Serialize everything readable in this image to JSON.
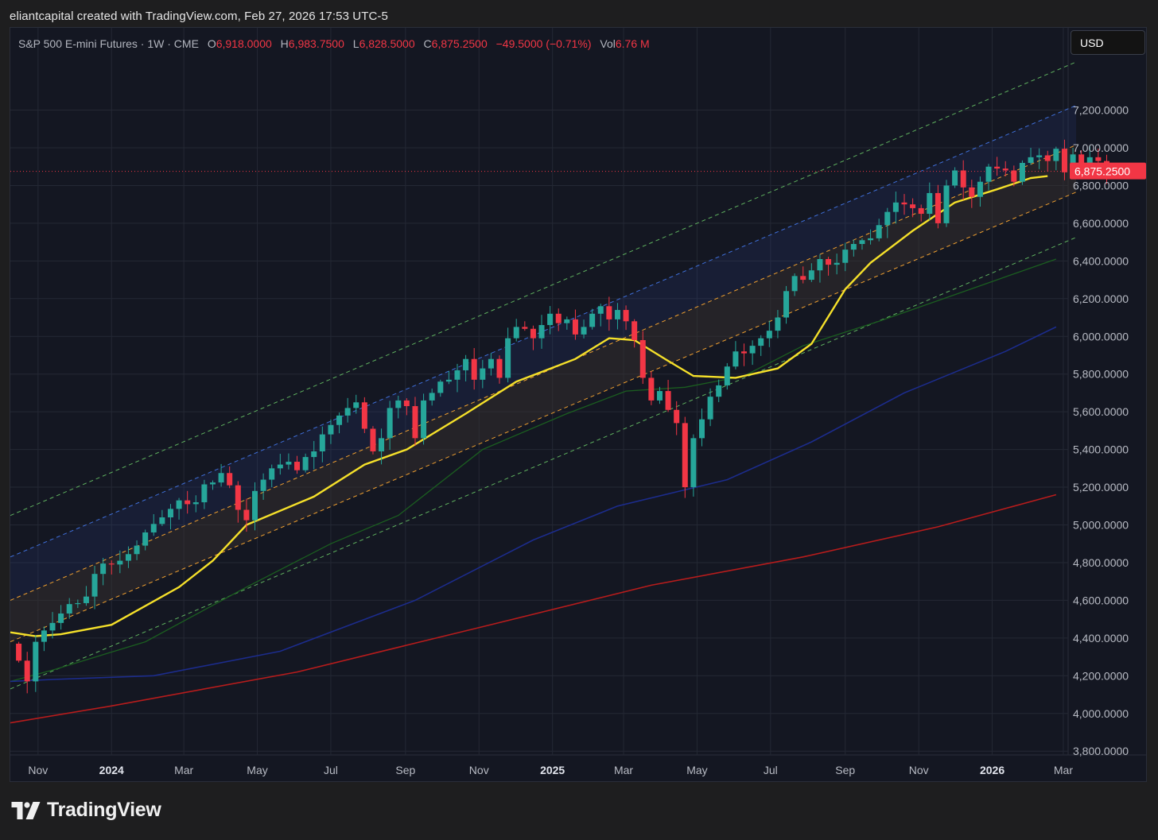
{
  "header": {
    "attribution": "eliantcapital created with TradingView.com, Feb 27, 2026 17:53 UTC-5"
  },
  "legend": {
    "symbol": "S&P 500 E-mini Futures · 1W · CME",
    "open_label": "O",
    "open": "6,918.0000",
    "high_label": "H",
    "high": "6,983.7500",
    "low_label": "L",
    "low": "6,828.5000",
    "close_label": "C",
    "close": "6,875.2500",
    "change": "−49.5000 (−0.71%)",
    "vol_label": "Vol",
    "vol": "6.76 M"
  },
  "currency_button": "USD",
  "footer": {
    "brand": "TradingView"
  },
  "colors": {
    "up": "#26a69a",
    "down": "#f23645",
    "ema20": "#f5e02a",
    "ma50": "#1b5e20",
    "ma100": "#1c2c8c",
    "ma200": "#b71c1c",
    "channel_outer": "#5fb15f",
    "channel_upper": "#3f6fd9",
    "channel_mid": "#f0a030",
    "background": "#141722"
  },
  "chart_data": {
    "type": "candlestick",
    "title": "S&P 500 E-mini Futures · 1W · CME",
    "y_axis": {
      "min": 3700,
      "max": 7250,
      "ticks": [
        "7,200.0000",
        "7,000.0000",
        "6,800.0000",
        "6,600.0000",
        "6,400.0000",
        "6,200.0000",
        "6,000.0000",
        "5,800.0000",
        "5,600.0000",
        "5,400.0000",
        "5,200.0000",
        "5,000.0000",
        "4,800.0000",
        "4,600.0000",
        "4,400.0000",
        "4,200.0000",
        "4,000.0000",
        "3,800.0000"
      ],
      "tick_values": [
        7200,
        7000,
        6800,
        6600,
        6400,
        6200,
        6000,
        5800,
        5600,
        5400,
        5200,
        5000,
        4800,
        4600,
        4400,
        4200,
        4000,
        3800
      ],
      "last_price_label": "6,875.2500",
      "last_price": 6875.25
    },
    "x_axis": {
      "labels": [
        "Nov",
        "2024",
        "Mar",
        "May",
        "Jul",
        "Sep",
        "Nov",
        "2025",
        "Mar",
        "May",
        "Jul",
        "Sep",
        "Nov",
        "2026",
        "Mar"
      ],
      "label_dates": [
        "2023-11-01",
        "2024-01-01",
        "2024-03-01",
        "2024-05-01",
        "2024-07-01",
        "2024-09-01",
        "2024-11-01",
        "2025-01-01",
        "2025-03-01",
        "2025-05-01",
        "2025-07-01",
        "2025-09-01",
        "2025-11-01",
        "2026-01-01",
        "2026-03-01"
      ],
      "bold": [
        "2024",
        "2025",
        "2026"
      ],
      "start_date": "2023-10-09",
      "end_date": "2026-03-05"
    },
    "candles_weekly_close": {
      "first_week": "2023-10-16",
      "first_open": 4370,
      "closes": [
        4280,
        4170,
        4380,
        4440,
        4480,
        4530,
        4580,
        4585,
        4620,
        4740,
        4795,
        4790,
        4810,
        4845,
        4890,
        4960,
        5005,
        5040,
        5085,
        5130,
        5110,
        5120,
        5215,
        5225,
        5275,
        5210,
        5080,
        5025,
        5180,
        5240,
        5300,
        5320,
        5335,
        5290,
        5360,
        5390,
        5480,
        5530,
        5580,
        5620,
        5650,
        5510,
        5390,
        5460,
        5620,
        5660,
        5630,
        5460,
        5660,
        5700,
        5760,
        5770,
        5820,
        5880,
        5770,
        5830,
        5880,
        5780,
        5990,
        6050,
        6040,
        5990,
        6060,
        6120,
        6070,
        6090,
        6010,
        6050,
        6120,
        6160,
        6090,
        6140,
        6080,
        5980,
        5780,
        5660,
        5710,
        5610,
        5540,
        5200,
        5460,
        5560,
        5680,
        5740,
        5840,
        5920,
        5910,
        5950,
        5990,
        6030,
        6100,
        6240,
        6320,
        6300,
        6350,
        6410,
        6380,
        6390,
        6460,
        6490,
        6510,
        6520,
        6590,
        6660,
        6710,
        6700,
        6680,
        6650,
        6760,
        6600,
        6800,
        6880,
        6790,
        6740,
        6820,
        6900,
        6890,
        6880,
        6820,
        6920,
        6950,
        6960,
        6930,
        6995,
        6870,
        6965,
        6880,
        6950,
        6930,
        6875.25
      ]
    },
    "series": [
      {
        "name": "",
        "type": "ema",
        "points": [
          [
            "2023-10-09",
            4430
          ],
          [
            "2023-10-30",
            4410
          ],
          [
            "2023-11-20",
            4420
          ],
          [
            "2024-01-01",
            4470
          ],
          [
            "2024-02-26",
            4670
          ],
          [
            "2024-03-25",
            4810
          ],
          [
            "2024-04-22",
            5000
          ],
          [
            "2024-06-17",
            5150
          ],
          [
            "2024-07-29",
            5320
          ],
          [
            "2024-09-02",
            5400
          ],
          [
            "2024-10-21",
            5590
          ],
          [
            "2024-12-02",
            5760
          ],
          [
            "2025-01-20",
            5880
          ],
          [
            "2025-02-17",
            5990
          ],
          [
            "2025-03-10",
            5980
          ],
          [
            "2025-04-07",
            5870
          ],
          [
            "2025-04-28",
            5790
          ],
          [
            "2025-06-02",
            5780
          ],
          [
            "2025-07-07",
            5830
          ],
          [
            "2025-08-04",
            5960
          ],
          [
            "2025-09-01",
            6250
          ],
          [
            "2025-09-22",
            6390
          ],
          [
            "2025-10-27",
            6560
          ],
          [
            "2025-12-01",
            6710
          ],
          [
            "2026-01-05",
            6780
          ],
          [
            "2026-02-02",
            6840
          ],
          [
            "2026-02-16",
            6850
          ]
        ]
      },
      {
        "name": "",
        "type": "ma",
        "points": [
          [
            "2023-10-09",
            4170
          ],
          [
            "2023-11-13",
            4230
          ],
          [
            "2024-01-29",
            4380
          ],
          [
            "2024-04-22",
            4670
          ],
          [
            "2024-07-01",
            4900
          ],
          [
            "2024-08-26",
            5050
          ],
          [
            "2024-11-04",
            5400
          ],
          [
            "2025-01-13",
            5590
          ],
          [
            "2025-03-03",
            5710
          ],
          [
            "2025-04-21",
            5730
          ],
          [
            "2025-06-09",
            5790
          ],
          [
            "2025-07-28",
            5950
          ],
          [
            "2025-09-29",
            6080
          ],
          [
            "2025-11-17",
            6190
          ],
          [
            "2026-01-05",
            6300
          ],
          [
            "2026-02-23",
            6410
          ]
        ]
      },
      {
        "name": "",
        "type": "ma",
        "points": [
          [
            "2023-10-09",
            4170
          ],
          [
            "2023-11-13",
            4180
          ],
          [
            "2024-02-05",
            4200
          ],
          [
            "2024-05-20",
            4330
          ],
          [
            "2024-09-09",
            4600
          ],
          [
            "2024-12-16",
            4920
          ],
          [
            "2025-02-24",
            5100
          ],
          [
            "2025-05-26",
            5240
          ],
          [
            "2025-08-04",
            5440
          ],
          [
            "2025-10-20",
            5700
          ],
          [
            "2026-01-12",
            5920
          ],
          [
            "2026-02-23",
            6050
          ]
        ]
      },
      {
        "name": "",
        "type": "ma",
        "points": [
          [
            "2023-10-09",
            3950
          ],
          [
            "2024-01-01",
            4040
          ],
          [
            "2024-06-03",
            4220
          ],
          [
            "2024-11-04",
            4460
          ],
          [
            "2025-03-24",
            4680
          ],
          [
            "2025-07-28",
            4830
          ],
          [
            "2025-11-17",
            4990
          ],
          [
            "2026-02-23",
            5160
          ]
        ]
      },
      {
        "name": "",
        "type": "channel",
        "values_at": [
          "2023-10-09",
          "2026-02-23"
        ],
        "upper_outer": [
          5050,
          7410
        ],
        "upper": [
          4830,
          7180
        ],
        "mid_upper": [
          4600,
          6970
        ],
        "mid_lower": [
          4380,
          6720
        ],
        "lower_outer": [
          4130,
          6480
        ]
      }
    ],
    "grid": true,
    "legend": "top-left"
  }
}
